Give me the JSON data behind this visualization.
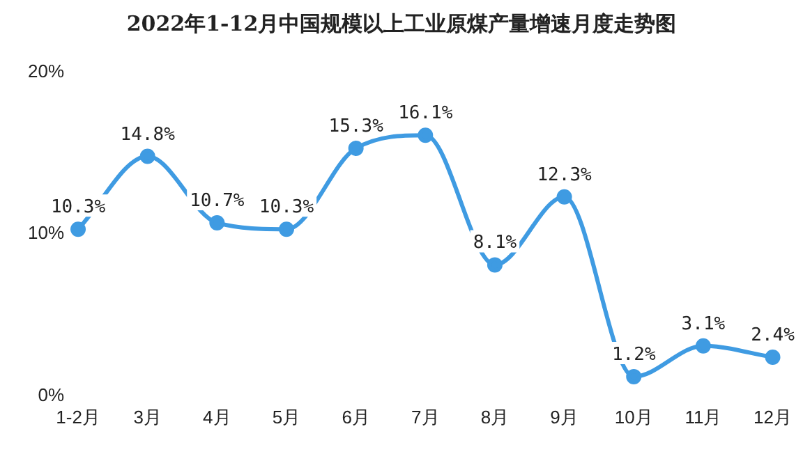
{
  "chart_data": {
    "type": "line",
    "title": "2022年1-12月中国规模以上工业原煤产量增速月度走势图",
    "categories": [
      "1-2月",
      "3月",
      "4月",
      "5月",
      "6月",
      "7月",
      "8月",
      "9月",
      "10月",
      "11月",
      "12月"
    ],
    "series": [
      {
        "color": "#3f9be2",
        "values": [
          10.3,
          14.8,
          10.7,
          10.3,
          15.3,
          16.1,
          8.1,
          12.3,
          1.2,
          3.1,
          2.4
        ],
        "value_labels": [
          "10.3%",
          "14.8%",
          "10.7%",
          "10.3%",
          "15.3%",
          "16.1%",
          "8.1%",
          "12.3%",
          "1.2%",
          "3.1%",
          "2.4%"
        ]
      }
    ],
    "ylim": [
      0,
      20
    ],
    "yticks": [
      {
        "value": 0,
        "label": "0%"
      },
      {
        "value": 10,
        "label": "10%"
      },
      {
        "value": 20,
        "label": "20%"
      }
    ],
    "grid": false,
    "legend": false,
    "marker": "circle",
    "line_style": "solid"
  }
}
